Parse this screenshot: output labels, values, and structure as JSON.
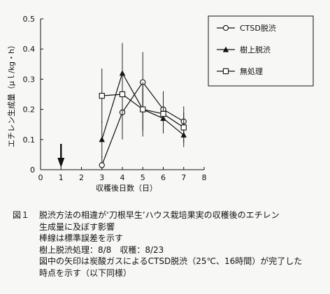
{
  "chart_data": {
    "type": "line",
    "ylabel": "エチレン生成量（μｌ/kg・h）",
    "xlabel": "収穫後日数（日）",
    "xlim": [
      0,
      8
    ],
    "ylim": [
      0,
      0.5
    ],
    "xticks": [
      "0",
      "1",
      "2",
      "3",
      "4",
      "5",
      "6",
      "7",
      "8"
    ],
    "yticks": [
      "0",
      "0.1",
      "0.2",
      "0.3",
      "0.4",
      "0.5"
    ],
    "legend_position": "top-right",
    "arrow_x": 1,
    "series": [
      {
        "name": "CTSD脱渋",
        "marker": "open-circle",
        "x": [
          3,
          4,
          5,
          6,
          7
        ],
        "y": [
          0.015,
          0.19,
          0.29,
          0.2,
          0.16
        ],
        "err": [
          0.03,
          0.09,
          0.1,
          0.06,
          0.05
        ]
      },
      {
        "name": "樹上脱渋",
        "marker": "filled-triangle",
        "x": [
          3,
          4,
          5,
          6,
          7
        ],
        "y": [
          0.1,
          0.32,
          0.2,
          0.17,
          0.115
        ],
        "err": [
          0.06,
          0.1,
          0.07,
          0.05,
          0.04
        ]
      },
      {
        "name": "無処理",
        "marker": "open-square",
        "x": [
          3,
          4,
          5,
          6,
          7
        ],
        "y": [
          0.245,
          0.25,
          0.2,
          0.185,
          0.14
        ],
        "err": [
          0.09,
          0.1,
          0.09,
          0.06,
          0.05
        ]
      }
    ]
  },
  "caption": {
    "fig_label": "図１",
    "lines": [
      "脱渋方法の相違が‘刀根早生’ハウス栽培果実の収穫後のエチレン",
      "生成量に及ぼす影響",
      "棒線は標準誤差を示す",
      "樹上脱渋処理：8/8　収穫：8/23",
      "図中の矢印は炭酸ガスによるCTSD脱渋（25℃、16時間）が完了した",
      "時点を示す（以下同様）"
    ]
  }
}
